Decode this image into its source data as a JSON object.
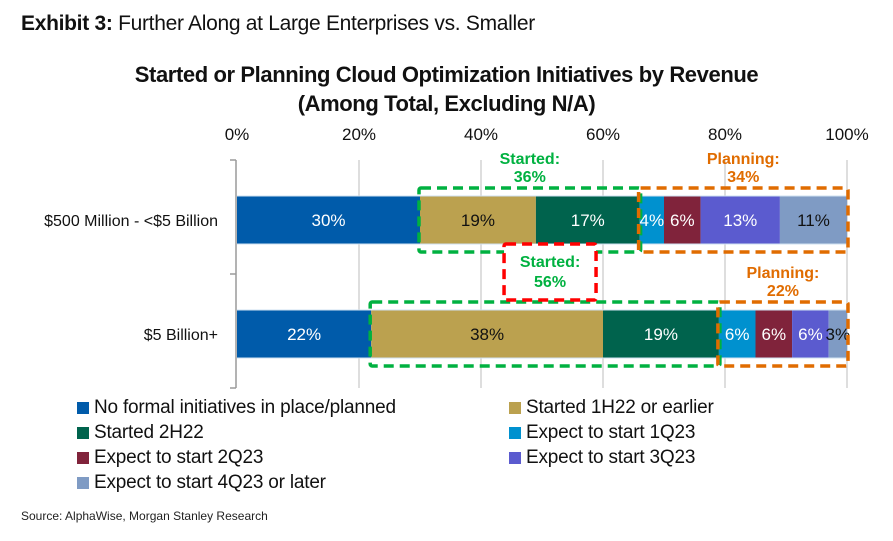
{
  "exhibit": {
    "label": "Exhibit 3:",
    "text": "Further Along at Large Enterprises vs. Smaller"
  },
  "source": "Source: AlphaWise, Morgan Stanley Research",
  "chart_data": {
    "type": "bar",
    "orientation": "horizontal",
    "stacked": true,
    "title": "Started or Planning Cloud Optimization Initiatives by Revenue",
    "subtitle": "(Among Total, Excluding N/A)",
    "xlabel": "",
    "ylabel": "",
    "xlim": [
      0,
      100
    ],
    "x_ticks": [
      "0%",
      "20%",
      "40%",
      "60%",
      "80%",
      "100%"
    ],
    "x_tick_values": [
      0,
      20,
      40,
      60,
      80,
      100
    ],
    "grid": true,
    "categories": [
      "$500 Million - <$5 Billion",
      "$5 Billion+"
    ],
    "series": [
      {
        "name": "No formal initiatives in place/planned",
        "color": "#005BAA",
        "label_color": "#ffffff",
        "values": [
          30,
          22
        ]
      },
      {
        "name": "Started 1H22 or earlier",
        "color": "#BBA14F",
        "label_color": "#111111",
        "values": [
          19,
          38
        ]
      },
      {
        "name": "Started 2H22",
        "color": "#00634D",
        "label_color": "#ffffff",
        "values": [
          17,
          19
        ]
      },
      {
        "name": "Expect to start 1Q23",
        "color": "#0091CF",
        "label_color": "#ffffff",
        "values": [
          4,
          6
        ]
      },
      {
        "name": "Expect to start 2Q23",
        "color": "#80233B",
        "label_color": "#ffffff",
        "values": [
          6,
          6
        ]
      },
      {
        "name": "Expect to start 3Q23",
        "color": "#5B5BCF",
        "label_color": "#ffffff",
        "values": [
          13,
          6
        ]
      },
      {
        "name": "Expect to start 4Q23 or later",
        "color": "#7F9BC4",
        "label_color": "#111111",
        "values": [
          11,
          3
        ]
      }
    ],
    "legend_position": "bottom",
    "annotations": [
      {
        "category_index": 0,
        "group": "started",
        "title": "Started:",
        "value": "36%",
        "series_range": [
          1,
          2
        ],
        "color": "#00B140"
      },
      {
        "category_index": 0,
        "group": "planning",
        "title": "Planning:",
        "value": "34%",
        "series_range": [
          3,
          6
        ],
        "color": "#E06C00"
      },
      {
        "category_index": 1,
        "group": "started",
        "title": "Started:",
        "value": "56%",
        "series_range": [
          1,
          2
        ],
        "color": "#00B140",
        "highlight_color": "#FF0000"
      },
      {
        "category_index": 1,
        "group": "planning",
        "title": "Planning:",
        "value": "22%",
        "series_range": [
          3,
          6
        ],
        "color": "#E06C00"
      }
    ]
  }
}
